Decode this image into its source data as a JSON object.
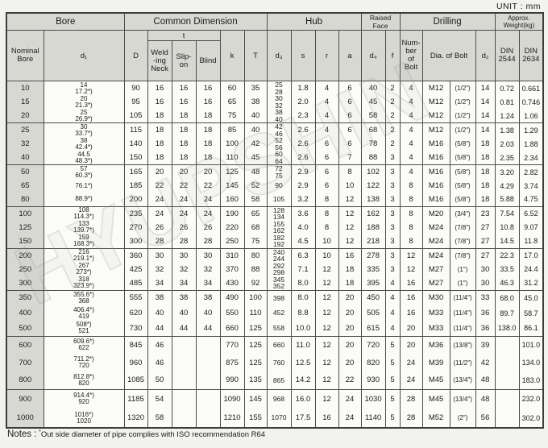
{
  "unit_label": "UNIT : mm",
  "watermark": "HYUPSHIN",
  "header": {
    "bore": "Bore",
    "common_dimension": "Common Dimension",
    "hub": "Hub",
    "raised_face": "Raised Face",
    "drilling": "Drilling",
    "weight": "Approx. Weight(kg)",
    "nominal_bore": "Nominal\nBore",
    "d1": "d₁",
    "D": "D",
    "t": "t",
    "welding_neck": "Weld\n-ing\nNeck",
    "slip_on": "Slip-\non",
    "blind": "Blind",
    "k": "k",
    "T": "T",
    "d3": "d₃",
    "s": "s",
    "r": "r",
    "a": "a",
    "d4": "d₄",
    "f": "f",
    "number_of_bolt": "Num-\nber\nof\nBolt",
    "dia_of_bolt": "Dia. of Bolt",
    "d2": "d₂",
    "din_2544": "DIN\n2544",
    "din_2634": "DIN\n2634"
  },
  "columns": [
    "nb",
    "d1",
    "D",
    "tw",
    "ts",
    "tb",
    "k",
    "T",
    "d3",
    "s",
    "r",
    "a",
    "d4",
    "f",
    "n",
    "bolt_m",
    "bolt_in",
    "d2",
    "w2544",
    "w2634"
  ],
  "rows": [
    {
      "group_start": true,
      "cells": {
        "nb": "10",
        "d1": "14\n17.2*)",
        "D": "90",
        "tw": "16",
        "ts": "16",
        "tb": "16",
        "k": "60",
        "T": "35",
        "d3": "25\n28",
        "s": "1.8",
        "r": "4",
        "a": "6",
        "d4": "40",
        "f": "2",
        "n": "4",
        "bolt_m": "M12",
        "bolt_in": "(1/2″)",
        "d2": "14",
        "w2544": "0.72",
        "w2634": "0.661"
      }
    },
    {
      "group_start": false,
      "cells": {
        "nb": "15",
        "d1": "20\n21.3*)",
        "D": "95",
        "tw": "16",
        "ts": "16",
        "tb": "16",
        "k": "65",
        "T": "38",
        "d3": "30\n32",
        "s": "2.0",
        "r": "4",
        "a": "6",
        "d4": "45",
        "f": "2",
        "n": "4",
        "bolt_m": "M12",
        "bolt_in": "(1/2″)",
        "d2": "14",
        "w2544": "0.81",
        "w2634": "0.746"
      }
    },
    {
      "group_start": false,
      "cells": {
        "nb": "20",
        "d1": "25\n26.9*)",
        "D": "105",
        "tw": "18",
        "ts": "18",
        "tb": "18",
        "k": "75",
        "T": "40",
        "d3": "38\n40",
        "s": "2.3",
        "r": "4",
        "a": "6",
        "d4": "58",
        "f": "2",
        "n": "4",
        "bolt_m": "M12",
        "bolt_in": "(1/2″)",
        "d2": "14",
        "w2544": "1.24",
        "w2634": "1.06"
      }
    },
    {
      "group_start": true,
      "cells": {
        "nb": "25",
        "d1": "30\n33.7*)",
        "D": "115",
        "tw": "18",
        "ts": "18",
        "tb": "18",
        "k": "85",
        "T": "40",
        "d3": "42\n46",
        "s": "2.6",
        "r": "4",
        "a": "6",
        "d4": "68",
        "f": "2",
        "n": "4",
        "bolt_m": "M12",
        "bolt_in": "(1/2″)",
        "d2": "14",
        "w2544": "1.38",
        "w2634": "1.29"
      }
    },
    {
      "group_start": false,
      "cells": {
        "nb": "32",
        "d1": "38\n42.4*)",
        "D": "140",
        "tw": "18",
        "ts": "18",
        "tb": "18",
        "k": "100",
        "T": "42",
        "d3": "52\n56",
        "s": "2.6",
        "r": "6",
        "a": "6",
        "d4": "78",
        "f": "2",
        "n": "4",
        "bolt_m": "M16",
        "bolt_in": "(5/8″)",
        "d2": "18",
        "w2544": "2.03",
        "w2634": "1.88"
      }
    },
    {
      "group_start": false,
      "cells": {
        "nb": "40",
        "d1": "44.5\n48.3*)",
        "D": "150",
        "tw": "18",
        "ts": "18",
        "tb": "18",
        "k": "110",
        "T": "45",
        "d3": "60\n64",
        "s": "2.6",
        "r": "6",
        "a": "7",
        "d4": "88",
        "f": "3",
        "n": "4",
        "bolt_m": "M16",
        "bolt_in": "(5/8″)",
        "d2": "18",
        "w2544": "2.35",
        "w2634": "2.34"
      }
    },
    {
      "group_start": true,
      "cells": {
        "nb": "50",
        "d1": "57\n60.3*)",
        "D": "165",
        "tw": "20",
        "ts": "20",
        "tb": "20",
        "k": "125",
        "T": "48",
        "d3": "72\n75",
        "s": "2.9",
        "r": "6",
        "a": "8",
        "d4": "102",
        "f": "3",
        "n": "4",
        "bolt_m": "M16",
        "bolt_in": "(5/8″)",
        "d2": "18",
        "w2544": "3.20",
        "w2634": "2.82"
      }
    },
    {
      "group_start": false,
      "cells": {
        "nb": "65",
        "d1": "76.1*)",
        "D": "185",
        "tw": "22",
        "ts": "22",
        "tb": "22",
        "k": "145",
        "T": "52",
        "d3": "90",
        "s": "2.9",
        "r": "6",
        "a": "10",
        "d4": "122",
        "f": "3",
        "n": "8",
        "bolt_m": "M16",
        "bolt_in": "(5/8″)",
        "d2": "18",
        "w2544": "4.29",
        "w2634": "3.74"
      }
    },
    {
      "group_start": false,
      "cells": {
        "nb": "80",
        "d1": "88.9*)",
        "D": "200",
        "tw": "24",
        "ts": "24",
        "tb": "24",
        "k": "160",
        "T": "58",
        "d3": "105",
        "s": "3.2",
        "r": "8",
        "a": "12",
        "d4": "138",
        "f": "3",
        "n": "8",
        "bolt_m": "M16",
        "bolt_in": "(5/8″)",
        "d2": "18",
        "w2544": "5.88",
        "w2634": "4.75"
      }
    },
    {
      "group_start": true,
      "cells": {
        "nb": "100",
        "d1": "108\n114.3*)",
        "D": "235",
        "tw": "24",
        "ts": "24",
        "tb": "24",
        "k": "190",
        "T": "65",
        "d3": "128\n134",
        "s": "3.6",
        "r": "8",
        "a": "12",
        "d4": "162",
        "f": "3",
        "n": "8",
        "bolt_m": "M20",
        "bolt_in": "(3/4″)",
        "d2": "23",
        "w2544": "7.54",
        "w2634": "6.52"
      }
    },
    {
      "group_start": false,
      "cells": {
        "nb": "125",
        "d1": "133\n139.7*)",
        "D": "270",
        "tw": "26",
        "ts": "26",
        "tb": "26",
        "k": "220",
        "T": "68",
        "d3": "155\n162",
        "s": "4.0",
        "r": "8",
        "a": "12",
        "d4": "188",
        "f": "3",
        "n": "8",
        "bolt_m": "M24",
        "bolt_in": "(7/8″)",
        "d2": "27",
        "w2544": "10.8",
        "w2634": "9.07"
      }
    },
    {
      "group_start": false,
      "cells": {
        "nb": "150",
        "d1": "159\n168.3*)",
        "D": "300",
        "tw": "28",
        "ts": "28",
        "tb": "28",
        "k": "250",
        "T": "75",
        "d3": "182\n192",
        "s": "4.5",
        "r": "10",
        "a": "12",
        "d4": "218",
        "f": "3",
        "n": "8",
        "bolt_m": "M24",
        "bolt_in": "(7/8″)",
        "d2": "27",
        "w2544": "14.5",
        "w2634": "11.8"
      }
    },
    {
      "group_start": true,
      "cells": {
        "nb": "200",
        "d1": "216\n219.1*)",
        "D": "360",
        "tw": "30",
        "ts": "30",
        "tb": "30",
        "k": "310",
        "T": "80",
        "d3": "240\n244",
        "s": "6.3",
        "r": "10",
        "a": "16",
        "d4": "278",
        "f": "3",
        "n": "12",
        "bolt_m": "M24",
        "bolt_in": "(7/8″)",
        "d2": "27",
        "w2544": "22.3",
        "w2634": "17.0"
      }
    },
    {
      "group_start": false,
      "cells": {
        "nb": "250",
        "d1": "267\n273*)",
        "D": "425",
        "tw": "32",
        "ts": "32",
        "tb": "32",
        "k": "370",
        "T": "88",
        "d3": "292\n298",
        "s": "7.1",
        "r": "12",
        "a": "18",
        "d4": "335",
        "f": "3",
        "n": "12",
        "bolt_m": "M27",
        "bolt_in": "(1″)",
        "d2": "30",
        "w2544": "33.5",
        "w2634": "24.4"
      }
    },
    {
      "group_start": false,
      "cells": {
        "nb": "300",
        "d1": "318\n323.9*)",
        "D": "485",
        "tw": "34",
        "ts": "34",
        "tb": "34",
        "k": "430",
        "T": "92",
        "d3": "345\n352",
        "s": "8.0",
        "r": "12",
        "a": "18",
        "d4": "395",
        "f": "4",
        "n": "16",
        "bolt_m": "M27",
        "bolt_in": "(1″)",
        "d2": "30",
        "w2544": "46.3",
        "w2634": "31.2"
      }
    },
    {
      "group_start": true,
      "cells": {
        "nb": "350",
        "d1": "355.6*)\n368",
        "D": "555",
        "tw": "38",
        "ts": "38",
        "tb": "38",
        "k": "490",
        "T": "100",
        "d3": "398",
        "s": "8.0",
        "r": "12",
        "a": "20",
        "d4": "450",
        "f": "4",
        "n": "16",
        "bolt_m": "M30",
        "bolt_in": "(11/4″)",
        "d2": "33",
        "w2544": "68.0",
        "w2634": "45.0"
      }
    },
    {
      "group_start": false,
      "cells": {
        "nb": "400",
        "d1": "406.4*)\n419",
        "D": "620",
        "tw": "40",
        "ts": "40",
        "tb": "40",
        "k": "550",
        "T": "110",
        "d3": "452",
        "s": "8.8",
        "r": "12",
        "a": "20",
        "d4": "505",
        "f": "4",
        "n": "16",
        "bolt_m": "M33",
        "bolt_in": "(11/4″)",
        "d2": "36",
        "w2544": "89.7",
        "w2634": "58.7"
      }
    },
    {
      "group_start": false,
      "cells": {
        "nb": "500",
        "d1": "508*)\n521",
        "D": "730",
        "tw": "44",
        "ts": "44",
        "tb": "44",
        "k": "660",
        "T": "125",
        "d3": "558",
        "s": "10.0",
        "r": "12",
        "a": "20",
        "d4": "615",
        "f": "4",
        "n": "20",
        "bolt_m": "M33",
        "bolt_in": "(11/4″)",
        "d2": "36",
        "w2544": "138.0",
        "w2634": "86.1"
      }
    },
    {
      "group_start": true,
      "cells": {
        "nb": "600",
        "d1": "609.6*)\n622",
        "D": "845",
        "tw": "46",
        "ts": "",
        "tb": "",
        "k": "770",
        "T": "125",
        "d3": "660",
        "s": "11.0",
        "r": "12",
        "a": "20",
        "d4": "720",
        "f": "5",
        "n": "20",
        "bolt_m": "M36",
        "bolt_in": "(13/8″)",
        "d2": "39",
        "w2544": "",
        "w2634": "101.0"
      }
    },
    {
      "group_start": false,
      "cells": {
        "nb": "700",
        "d1": "711.2*)\n720",
        "D": "960",
        "tw": "46",
        "ts": "",
        "tb": "",
        "k": "875",
        "T": "125",
        "d3": "760",
        "s": "12.5",
        "r": "12",
        "a": "20",
        "d4": "820",
        "f": "5",
        "n": "24",
        "bolt_m": "M39",
        "bolt_in": "(11/2″)",
        "d2": "42",
        "w2544": "",
        "w2634": "134.0"
      }
    },
    {
      "group_start": false,
      "cells": {
        "nb": "800",
        "d1": "812.8*)\n820",
        "D": "1085",
        "tw": "50",
        "ts": "",
        "tb": "",
        "k": "990",
        "T": "135",
        "d3": "865",
        "s": "14.2",
        "r": "12",
        "a": "22",
        "d4": "930",
        "f": "5",
        "n": "24",
        "bolt_m": "M45",
        "bolt_in": "(13/4″)",
        "d2": "48",
        "w2544": "",
        "w2634": "183.0"
      }
    },
    {
      "group_start": true,
      "cells": {
        "nb": "900",
        "d1": "914.4*)\n920",
        "D": "1185",
        "tw": "54",
        "ts": "",
        "tb": "",
        "k": "1090",
        "T": "145",
        "d3": "968",
        "s": "16.0",
        "r": "12",
        "a": "24",
        "d4": "1030",
        "f": "5",
        "n": "28",
        "bolt_m": "M45",
        "bolt_in": "(13/4″)",
        "d2": "48",
        "w2544": "",
        "w2634": "232.0"
      }
    },
    {
      "group_start": false,
      "cells": {
        "nb": "1000",
        "d1": "1016*)\n1020",
        "D": "1320",
        "tw": "58",
        "ts": "",
        "tb": "",
        "k": "1210",
        "T": "155",
        "d3": "1070",
        "s": "17.5",
        "r": "16",
        "a": "24",
        "d4": "1140",
        "f": "5",
        "n": "28",
        "bolt_m": "M52",
        "bolt_in": "(2″)",
        "d2": "56",
        "w2544": "",
        "w2634": "302.0"
      }
    }
  ],
  "notes": {
    "label": "Notes :",
    "star": "*",
    "text": "Out side diameter of pipe complies with ISO recommendation R64"
  }
}
